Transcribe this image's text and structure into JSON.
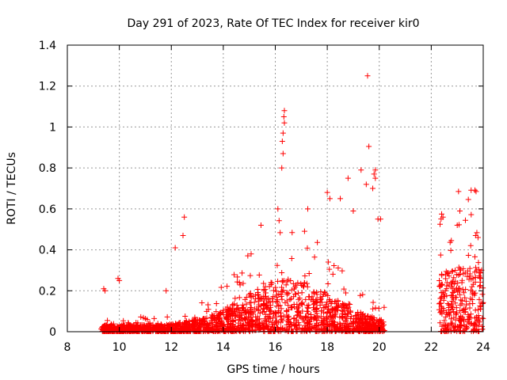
{
  "chart_data": {
    "type": "scatter",
    "title": "Day 291 of 2023, Rate Of TEC Index for receiver kir0",
    "xlabel": "GPS time / hours",
    "ylabel": "ROTI / TECUs",
    "xlim": [
      8,
      24
    ],
    "ylim": [
      0,
      1.4
    ],
    "xticks": [
      "8",
      "10",
      "12",
      "14",
      "16",
      "18",
      "20",
      "22",
      "24"
    ],
    "yticks": [
      "0",
      "0.2",
      "0.4",
      "0.6",
      "0.8",
      "1",
      "1.2",
      "1.4"
    ],
    "grid": true,
    "marker": "+",
    "color": "#ff0000",
    "segments": [
      {
        "x_start": 9.3,
        "x_end": 20.2,
        "base": 0.02,
        "peak_x": 16.5,
        "peak_spread": 0.14
      },
      {
        "x_start": 22.3,
        "x_end": 24.0,
        "base": 0.08,
        "peak_x": 23.5,
        "peak_spread": 0.12
      }
    ],
    "highlight_points": [
      {
        "x": 19.55,
        "y": 1.25
      },
      {
        "x": 16.35,
        "y": 1.08
      },
      {
        "x": 16.33,
        "y": 1.05
      },
      {
        "x": 16.35,
        "y": 1.02
      },
      {
        "x": 16.3,
        "y": 0.97
      },
      {
        "x": 16.27,
        "y": 0.93
      },
      {
        "x": 19.6,
        "y": 0.905
      },
      {
        "x": 16.3,
        "y": 0.87
      },
      {
        "x": 19.85,
        "y": 0.79
      },
      {
        "x": 19.8,
        "y": 0.77
      },
      {
        "x": 19.85,
        "y": 0.75
      },
      {
        "x": 19.3,
        "y": 0.79
      },
      {
        "x": 19.5,
        "y": 0.72
      },
      {
        "x": 19.75,
        "y": 0.7
      },
      {
        "x": 18.8,
        "y": 0.75
      },
      {
        "x": 18.0,
        "y": 0.68
      },
      {
        "x": 18.1,
        "y": 0.65
      },
      {
        "x": 23.05,
        "y": 0.685
      },
      {
        "x": 16.25,
        "y": 0.8
      },
      {
        "x": 12.5,
        "y": 0.56
      },
      {
        "x": 12.45,
        "y": 0.47
      },
      {
        "x": 12.15,
        "y": 0.41
      },
      {
        "x": 17.25,
        "y": 0.6
      },
      {
        "x": 18.5,
        "y": 0.65
      },
      {
        "x": 22.4,
        "y": 0.575
      },
      {
        "x": 22.45,
        "y": 0.56
      },
      {
        "x": 23.1,
        "y": 0.59
      },
      {
        "x": 15.45,
        "y": 0.52
      },
      {
        "x": 16.1,
        "y": 0.6
      },
      {
        "x": 19.0,
        "y": 0.59
      },
      {
        "x": 19.95,
        "y": 0.55
      },
      {
        "x": 20.05,
        "y": 0.55
      },
      {
        "x": 9.45,
        "y": 0.2
      },
      {
        "x": 9.4,
        "y": 0.21
      },
      {
        "x": 9.95,
        "y": 0.26
      },
      {
        "x": 10.0,
        "y": 0.25
      },
      {
        "x": 11.8,
        "y": 0.2
      },
      {
        "x": 23.8,
        "y": 0.46
      },
      {
        "x": 23.0,
        "y": 0.52
      }
    ]
  }
}
